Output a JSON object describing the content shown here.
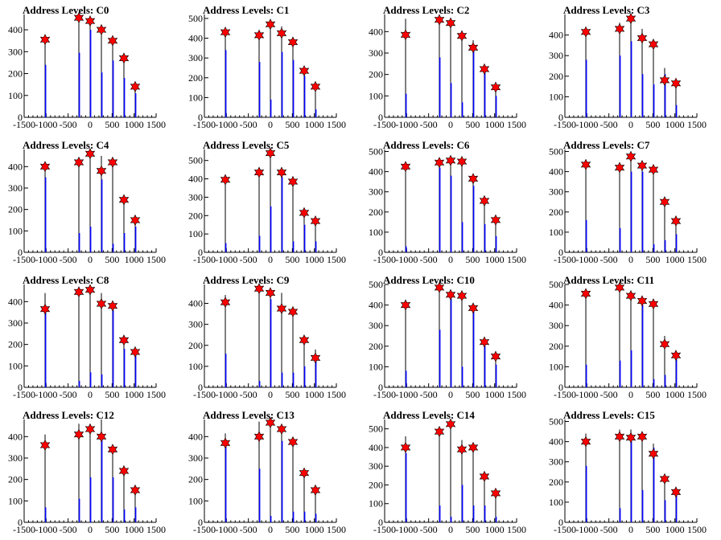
{
  "chart_data": [
    {
      "type": "bar",
      "title": "Address Levels: C0",
      "ylim": [
        0,
        470
      ],
      "yticks": [
        0,
        100,
        200,
        300,
        400
      ],
      "xlim": [
        -1500,
        1500
      ],
      "xticks": [
        -1500,
        -1000,
        -500,
        0,
        500,
        1000,
        1500
      ],
      "x": [
        -1024,
        -256,
        0,
        256,
        512,
        768,
        1024
      ],
      "series": [
        {
          "values": [
            350,
            455,
            445,
            400,
            350,
            265,
            140
          ]
        },
        {
          "values": [
            240,
            295,
            400,
            205,
            260,
            180,
            110
          ]
        },
        {
          "values": [
            355,
            455,
            440,
            400,
            350,
            270,
            140
          ]
        }
      ]
    },
    {
      "type": "bar",
      "title": "Address Levels: C1",
      "ylim": [
        0,
        520
      ],
      "yticks": [
        0,
        100,
        200,
        300,
        400,
        500
      ],
      "xlim": [
        -1500,
        1500
      ],
      "xticks": [
        -1500,
        -1000,
        -500,
        0,
        500,
        1000,
        1500
      ],
      "x": [
        -1024,
        -256,
        0,
        256,
        512,
        768,
        1024
      ],
      "series": [
        {
          "values": [
            430,
            440,
            490,
            460,
            390,
            240,
            160
          ]
        },
        {
          "values": [
            340,
            280,
            90,
            330,
            290,
            210,
            40
          ]
        },
        {
          "values": [
            430,
            415,
            470,
            425,
            380,
            235,
            155
          ]
        }
      ]
    },
    {
      "type": "bar",
      "title": "Address Levels: C2",
      "ylim": [
        0,
        480
      ],
      "yticks": [
        0,
        100,
        200,
        300,
        400
      ],
      "xlim": [
        -1500,
        1500
      ],
      "xticks": [
        -1500,
        -1000,
        -500,
        0,
        500,
        1000,
        1500
      ],
      "x": [
        -1024,
        -256,
        0,
        256,
        512,
        768,
        1024
      ],
      "series": [
        {
          "values": [
            460,
            460,
            430,
            390,
            360,
            230,
            150
          ]
        },
        {
          "values": [
            110,
            280,
            160,
            70,
            340,
            210,
            100
          ]
        },
        {
          "values": [
            385,
            455,
            440,
            380,
            325,
            225,
            140
          ]
        }
      ]
    },
    {
      "type": "bar",
      "title": "Address Levels: C3",
      "ylim": [
        0,
        500
      ],
      "yticks": [
        0,
        100,
        200,
        300,
        400
      ],
      "xlim": [
        -1500,
        1500
      ],
      "xticks": [
        -1500,
        -1000,
        -500,
        0,
        500,
        1000,
        1500
      ],
      "x": [
        -1024,
        -256,
        0,
        256,
        512,
        768,
        1024
      ],
      "series": [
        {
          "values": [
            415,
            460,
            470,
            430,
            350,
            240,
            170
          ]
        },
        {
          "values": [
            280,
            300,
            370,
            210,
            160,
            210,
            60
          ]
        },
        {
          "values": [
            415,
            430,
            480,
            385,
            355,
            180,
            165
          ]
        }
      ]
    },
    {
      "type": "bar",
      "title": "Address Levels: C4",
      "ylim": [
        0,
        480
      ],
      "yticks": [
        0,
        100,
        200,
        300,
        400
      ],
      "xlim": [
        -1500,
        1500
      ],
      "xticks": [
        -1500,
        -1000,
        -500,
        0,
        500,
        1000,
        1500
      ],
      "x": [
        -1024,
        -256,
        0,
        256,
        512,
        768,
        1024
      ],
      "series": [
        {
          "values": [
            410,
            430,
            460,
            450,
            430,
            250,
            160
          ]
        },
        {
          "values": [
            350,
            90,
            120,
            340,
            40,
            90,
            120
          ]
        },
        {
          "values": [
            400,
            420,
            460,
            380,
            420,
            245,
            150
          ]
        }
      ]
    },
    {
      "type": "bar",
      "title": "Address Levels: C5",
      "ylim": [
        0,
        560
      ],
      "yticks": [
        0,
        100,
        200,
        300,
        400,
        500
      ],
      "xlim": [
        -1500,
        1500
      ],
      "xticks": [
        -1500,
        -1000,
        -500,
        0,
        500,
        1000,
        1500
      ],
      "x": [
        -1024,
        -256,
        0,
        256,
        512,
        768,
        1024
      ],
      "series": [
        {
          "values": [
            400,
            450,
            560,
            440,
            390,
            230,
            180
          ]
        },
        {
          "values": [
            50,
            90,
            250,
            410,
            60,
            150,
            60
          ]
        },
        {
          "values": [
            395,
            435,
            540,
            435,
            385,
            215,
            170
          ]
        }
      ]
    },
    {
      "type": "bar",
      "title": "Address Levels: C6",
      "ylim": [
        0,
        510
      ],
      "yticks": [
        0,
        100,
        200,
        300,
        400,
        500
      ],
      "xlim": [
        -1500,
        1500
      ],
      "xticks": [
        -1500,
        -1000,
        -500,
        0,
        500,
        1000,
        1500
      ],
      "x": [
        -1024,
        -256,
        0,
        256,
        512,
        768,
        1024
      ],
      "series": [
        {
          "values": [
            430,
            460,
            470,
            460,
            370,
            260,
            170
          ]
        },
        {
          "values": [
            30,
            420,
            380,
            150,
            330,
            140,
            80
          ]
        },
        {
          "values": [
            425,
            445,
            455,
            450,
            365,
            255,
            160
          ]
        }
      ]
    },
    {
      "type": "bar",
      "title": "Address Levels: C7",
      "ylim": [
        0,
        510
      ],
      "yticks": [
        0,
        100,
        200,
        300,
        400,
        500
      ],
      "xlim": [
        -1500,
        1500
      ],
      "xticks": [
        -1500,
        -1000,
        -500,
        0,
        500,
        1000,
        1500
      ],
      "x": [
        -1024,
        -256,
        0,
        256,
        512,
        768,
        1024
      ],
      "series": [
        {
          "values": [
            440,
            430,
            490,
            440,
            420,
            260,
            160
          ]
        },
        {
          "values": [
            160,
            120,
            400,
            400,
            40,
            60,
            90
          ]
        },
        {
          "values": [
            435,
            420,
            475,
            430,
            410,
            250,
            155
          ]
        }
      ]
    },
    {
      "type": "bar",
      "title": "Address Levels: C8",
      "ylim": [
        0,
        480
      ],
      "yticks": [
        0,
        100,
        200,
        300,
        400
      ],
      "xlim": [
        -1500,
        1500
      ],
      "xticks": [
        -1500,
        -1000,
        -500,
        0,
        500,
        1000,
        1500
      ],
      "x": [
        -1024,
        -256,
        0,
        256,
        512,
        768,
        1024
      ],
      "series": [
        {
          "values": [
            440,
            460,
            460,
            440,
            390,
            230,
            170
          ]
        },
        {
          "values": [
            350,
            30,
            70,
            60,
            360,
            180,
            150
          ]
        },
        {
          "values": [
            365,
            445,
            455,
            390,
            380,
            220,
            165
          ]
        }
      ]
    },
    {
      "type": "bar",
      "title": "Address Levels: C9",
      "ylim": [
        0,
        490
      ],
      "yticks": [
        0,
        100,
        200,
        300,
        400
      ],
      "xlim": [
        -1500,
        1500
      ],
      "xticks": [
        -1500,
        -1000,
        -500,
        0,
        500,
        1000,
        1500
      ],
      "x": [
        -1024,
        -256,
        0,
        256,
        512,
        768,
        1024
      ],
      "series": [
        {
          "values": [
            440,
            470,
            470,
            450,
            370,
            230,
            180
          ]
        },
        {
          "values": [
            160,
            30,
            420,
            70,
            70,
            100,
            130
          ]
        },
        {
          "values": [
            405,
            470,
            450,
            375,
            360,
            225,
            140
          ]
        }
      ]
    },
    {
      "type": "bar",
      "title": "Address Levels: C10",
      "ylim": [
        0,
        500
      ],
      "yticks": [
        0,
        100,
        200,
        300,
        400,
        500
      ],
      "xlim": [
        -1500,
        1500
      ],
      "xticks": [
        -1500,
        -1000,
        -500,
        0,
        500,
        1000,
        1500
      ],
      "x": [
        -1024,
        -256,
        0,
        256,
        512,
        768,
        1024
      ],
      "series": [
        {
          "values": [
            410,
            500,
            460,
            460,
            400,
            230,
            160
          ]
        },
        {
          "values": [
            80,
            280,
            430,
            100,
            370,
            200,
            110
          ]
        },
        {
          "values": [
            400,
            485,
            450,
            445,
            385,
            220,
            150
          ]
        }
      ]
    },
    {
      "type": "bar",
      "title": "Address Levels: C11",
      "ylim": [
        0,
        500
      ],
      "yticks": [
        0,
        100,
        200,
        300,
        400,
        500
      ],
      "xlim": [
        -1500,
        1500
      ],
      "xticks": [
        -1500,
        -1000,
        -500,
        0,
        500,
        1000,
        1500
      ],
      "x": [
        -1024,
        -256,
        0,
        256,
        512,
        768,
        1024
      ],
      "series": [
        {
          "values": [
            470,
            500,
            460,
            430,
            410,
            250,
            160
          ]
        },
        {
          "values": [
            110,
            130,
            180,
            400,
            40,
            60,
            150
          ]
        },
        {
          "values": [
            455,
            485,
            445,
            420,
            405,
            210,
            155
          ]
        }
      ]
    },
    {
      "type": "bar",
      "title": "Address Levels: C12",
      "ylim": [
        0,
        480
      ],
      "yticks": [
        0,
        100,
        200,
        300,
        400
      ],
      "xlim": [
        -1500,
        1500
      ],
      "xticks": [
        -1500,
        -1000,
        -500,
        0,
        500,
        1000,
        1500
      ],
      "x": [
        -1024,
        -256,
        0,
        256,
        512,
        768,
        1024
      ],
      "series": [
        {
          "values": [
            410,
            460,
            460,
            480,
            350,
            250,
            160
          ]
        },
        {
          "values": [
            70,
            110,
            210,
            400,
            210,
            60,
            70
          ]
        },
        {
          "values": [
            360,
            410,
            435,
            400,
            340,
            240,
            150
          ]
        }
      ]
    },
    {
      "type": "bar",
      "title": "Address Levels: C13",
      "ylim": [
        0,
        480
      ],
      "yticks": [
        0,
        100,
        200,
        300,
        400
      ],
      "xlim": [
        -1500,
        1500
      ],
      "xticks": [
        -1500,
        -1000,
        -500,
        0,
        500,
        1000,
        1500
      ],
      "x": [
        -1024,
        -256,
        0,
        256,
        512,
        768,
        1024
      ],
      "series": [
        {
          "values": [
            415,
            470,
            480,
            440,
            390,
            240,
            160
          ]
        },
        {
          "values": [
            370,
            250,
            30,
            380,
            50,
            50,
            40
          ]
        },
        {
          "values": [
            370,
            400,
            465,
            435,
            375,
            230,
            150
          ]
        }
      ]
    },
    {
      "type": "bar",
      "title": "Address Levels: C14",
      "ylim": [
        0,
        550
      ],
      "yticks": [
        0,
        100,
        200,
        300,
        400,
        500
      ],
      "xlim": [
        -1500,
        1500
      ],
      "xticks": [
        -1500,
        -1000,
        -500,
        0,
        500,
        1000,
        1500
      ],
      "x": [
        -1024,
        -256,
        0,
        256,
        512,
        768,
        1024
      ],
      "series": [
        {
          "values": [
            460,
            500,
            540,
            440,
            420,
            260,
            170
          ]
        },
        {
          "values": [
            370,
            90,
            30,
            200,
            90,
            90,
            30
          ]
        },
        {
          "values": [
            400,
            485,
            525,
            390,
            400,
            245,
            155
          ]
        }
      ]
    },
    {
      "type": "bar",
      "title": "Address Levels: C15",
      "ylim": [
        0,
        510
      ],
      "yticks": [
        0,
        100,
        200,
        300,
        400,
        500
      ],
      "xlim": [
        -1500,
        1500
      ],
      "xticks": [
        -1500,
        -1000,
        -500,
        0,
        500,
        1000,
        1500
      ],
      "x": [
        -1024,
        -256,
        0,
        256,
        512,
        768,
        1024
      ],
      "series": [
        {
          "values": [
            440,
            460,
            460,
            440,
            390,
            240,
            160
          ]
        },
        {
          "values": [
            280,
            70,
            400,
            160,
            370,
            110,
            140
          ]
        },
        {
          "values": [
            400,
            425,
            420,
            425,
            340,
            215,
            150
          ]
        }
      ]
    }
  ],
  "colors": {
    "peak_line": "#000000",
    "fill_bar": "#0000ff",
    "marker": "#ff0000"
  }
}
